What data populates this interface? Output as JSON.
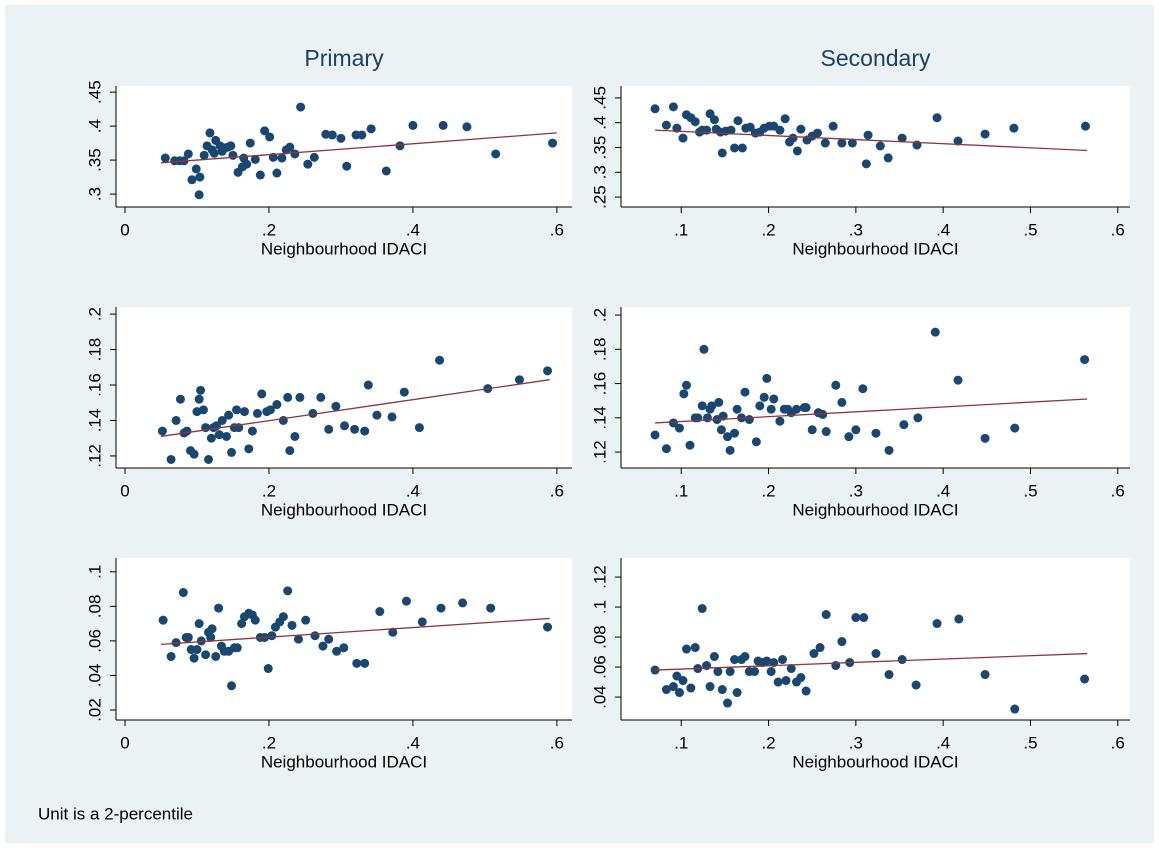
{
  "note": "Unit is a 2-percentile",
  "chart_data": [
    {
      "type": "scatter",
      "title": "Primary",
      "xlabel": "Neighbourhood IDACI",
      "color": "#1a476f",
      "xlim": [
        -0.0125,
        0.621
      ],
      "ylim": [
        0.281,
        0.459
      ],
      "xticks": [
        0,
        {
          "value": 0.2,
          "label": ".2"
        },
        {
          "value": 0.4,
          "label": ".4"
        },
        {
          "value": 0.6,
          "label": ".6"
        }
      ],
      "yticks": [
        {
          "value": 0.3,
          "label": ".3"
        },
        {
          "value": 0.35,
          "label": ".35"
        },
        {
          "value": 0.4,
          "label": ".4"
        },
        {
          "value": 0.45,
          "label": ".45"
        }
      ],
      "x": [
        0.056,
        0.069,
        0.076,
        0.082,
        0.088,
        0.093,
        0.099,
        0.103,
        0.104,
        0.11,
        0.114,
        0.118,
        0.121,
        0.124,
        0.126,
        0.132,
        0.135,
        0.139,
        0.143,
        0.147,
        0.15,
        0.157,
        0.163,
        0.165,
        0.169,
        0.174,
        0.181,
        0.188,
        0.194,
        0.201,
        0.206,
        0.211,
        0.218,
        0.224,
        0.229,
        0.236,
        0.244,
        0.254,
        0.263,
        0.279,
        0.288,
        0.3,
        0.308,
        0.321,
        0.329,
        0.342,
        0.363,
        0.382,
        0.4,
        0.442,
        0.475,
        0.515,
        0.594
      ],
      "values": [
        0.353,
        0.349,
        0.349,
        0.349,
        0.359,
        0.321,
        0.337,
        0.299,
        0.325,
        0.357,
        0.371,
        0.39,
        0.365,
        0.36,
        0.379,
        0.371,
        0.363,
        0.368,
        0.369,
        0.371,
        0.357,
        0.332,
        0.34,
        0.353,
        0.344,
        0.375,
        0.351,
        0.328,
        0.393,
        0.384,
        0.354,
        0.331,
        0.353,
        0.365,
        0.369,
        0.359,
        0.428,
        0.344,
        0.354,
        0.388,
        0.387,
        0.382,
        0.341,
        0.387,
        0.387,
        0.396,
        0.334,
        0.371,
        0.401,
        0.401,
        0.399,
        0.359,
        0.375
      ],
      "fit": {
        "color": "#90353b",
        "x": [
          0.05,
          0.6
        ],
        "values": [
          0.346,
          0.39
        ]
      }
    },
    {
      "type": "scatter",
      "title": "Secondary",
      "xlabel": "Neighbourhood IDACI",
      "color": "#1a476f",
      "xlim": [
        0.031,
        0.614
      ],
      "ylim": [
        0.23,
        0.474
      ],
      "xticks": [
        {
          "value": 0.1,
          "label": ".1"
        },
        {
          "value": 0.2,
          "label": ".2"
        },
        {
          "value": 0.3,
          "label": ".3"
        },
        {
          "value": 0.4,
          "label": ".4"
        },
        {
          "value": 0.5,
          "label": ".5"
        },
        {
          "value": 0.6,
          "label": ".6"
        }
      ],
      "yticks": [
        {
          "value": 0.25,
          "label": ".25"
        },
        {
          "value": 0.3,
          "label": ".3"
        },
        {
          "value": 0.35,
          "label": ".35"
        },
        {
          "value": 0.4,
          "label": ".4"
        },
        {
          "value": 0.45,
          "label": ".45"
        }
      ],
      "x": [
        0.07,
        0.083,
        0.091,
        0.095,
        0.102,
        0.106,
        0.111,
        0.116,
        0.121,
        0.124,
        0.129,
        0.133,
        0.138,
        0.14,
        0.145,
        0.147,
        0.151,
        0.157,
        0.161,
        0.165,
        0.17,
        0.174,
        0.179,
        0.185,
        0.19,
        0.195,
        0.201,
        0.206,
        0.213,
        0.219,
        0.224,
        0.228,
        0.233,
        0.237,
        0.244,
        0.25,
        0.256,
        0.265,
        0.274,
        0.284,
        0.296,
        0.312,
        0.314,
        0.328,
        0.337,
        0.353,
        0.37,
        0.393,
        0.417,
        0.448,
        0.481,
        0.563
      ],
      "values": [
        0.428,
        0.395,
        0.432,
        0.389,
        0.369,
        0.416,
        0.41,
        0.402,
        0.381,
        0.385,
        0.385,
        0.418,
        0.406,
        0.387,
        0.381,
        0.339,
        0.383,
        0.385,
        0.349,
        0.404,
        0.349,
        0.389,
        0.391,
        0.379,
        0.381,
        0.389,
        0.393,
        0.393,
        0.385,
        0.408,
        0.361,
        0.369,
        0.343,
        0.387,
        0.365,
        0.373,
        0.379,
        0.359,
        0.393,
        0.359,
        0.359,
        0.317,
        0.375,
        0.353,
        0.329,
        0.369,
        0.355,
        0.41,
        0.363,
        0.377,
        0.389,
        0.393
      ],
      "fit": {
        "color": "#90353b",
        "x": [
          0.07,
          0.565
        ],
        "values": [
          0.385,
          0.344
        ]
      }
    },
    {
      "type": "scatter",
      "xlabel": "Neighbourhood IDACI",
      "color": "#1a476f",
      "xlim": [
        -0.0125,
        0.621
      ],
      "ylim": [
        0.1132,
        0.204
      ],
      "xticks": [
        0,
        {
          "value": 0.2,
          "label": ".2"
        },
        {
          "value": 0.4,
          "label": ".4"
        },
        {
          "value": 0.6,
          "label": ".6"
        }
      ],
      "yticks": [
        {
          "value": 0.12,
          "label": ".12"
        },
        {
          "value": 0.14,
          "label": ".14"
        },
        {
          "value": 0.16,
          "label": ".16"
        },
        {
          "value": 0.18,
          "label": ".18"
        },
        {
          "value": 0.2,
          "label": ".2"
        }
      ],
      "x": [
        0.052,
        0.064,
        0.071,
        0.077,
        0.082,
        0.086,
        0.091,
        0.096,
        0.1,
        0.103,
        0.105,
        0.109,
        0.112,
        0.116,
        0.12,
        0.123,
        0.127,
        0.131,
        0.135,
        0.141,
        0.144,
        0.148,
        0.152,
        0.155,
        0.158,
        0.166,
        0.172,
        0.177,
        0.184,
        0.19,
        0.197,
        0.202,
        0.211,
        0.22,
        0.226,
        0.229,
        0.236,
        0.243,
        0.261,
        0.272,
        0.283,
        0.293,
        0.305,
        0.319,
        0.333,
        0.338,
        0.35,
        0.371,
        0.388,
        0.409,
        0.437,
        0.504,
        0.548,
        0.587
      ],
      "values": [
        0.134,
        0.118,
        0.14,
        0.152,
        0.133,
        0.134,
        0.123,
        0.121,
        0.145,
        0.152,
        0.157,
        0.146,
        0.136,
        0.118,
        0.13,
        0.136,
        0.137,
        0.132,
        0.14,
        0.131,
        0.143,
        0.122,
        0.136,
        0.146,
        0.136,
        0.145,
        0.124,
        0.134,
        0.144,
        0.155,
        0.145,
        0.146,
        0.149,
        0.14,
        0.153,
        0.123,
        0.131,
        0.153,
        0.144,
        0.153,
        0.135,
        0.148,
        0.137,
        0.135,
        0.134,
        0.16,
        0.143,
        0.142,
        0.156,
        0.136,
        0.174,
        0.158,
        0.163,
        0.168
      ],
      "fit": {
        "color": "#90353b",
        "x": [
          0.05,
          0.59
        ],
        "values": [
          0.131,
          0.163
        ]
      }
    },
    {
      "type": "scatter",
      "xlabel": "Neighbourhood IDACI",
      "color": "#1a476f",
      "xlim": [
        0.031,
        0.614
      ],
      "ylim": [
        0.1107,
        0.2047
      ],
      "xticks": [
        {
          "value": 0.1,
          "label": ".1"
        },
        {
          "value": 0.2,
          "label": ".2"
        },
        {
          "value": 0.3,
          "label": ".3"
        },
        {
          "value": 0.4,
          "label": ".4"
        },
        {
          "value": 0.5,
          "label": ".5"
        },
        {
          "value": 0.6,
          "label": ".6"
        }
      ],
      "yticks": [
        {
          "value": 0.12,
          "label": ".12"
        },
        {
          "value": 0.14,
          "label": ".14"
        },
        {
          "value": 0.16,
          "label": ".16"
        },
        {
          "value": 0.18,
          "label": ".18"
        },
        {
          "value": 0.2,
          "label": ".2"
        }
      ],
      "x": [
        0.07,
        0.083,
        0.091,
        0.098,
        0.103,
        0.106,
        0.11,
        0.116,
        0.119,
        0.124,
        0.126,
        0.13,
        0.133,
        0.135,
        0.141,
        0.143,
        0.146,
        0.148,
        0.153,
        0.156,
        0.161,
        0.164,
        0.169,
        0.173,
        0.178,
        0.186,
        0.19,
        0.195,
        0.198,
        0.203,
        0.206,
        0.213,
        0.218,
        0.222,
        0.226,
        0.232,
        0.241,
        0.243,
        0.25,
        0.257,
        0.262,
        0.266,
        0.277,
        0.284,
        0.292,
        0.3,
        0.308,
        0.323,
        0.338,
        0.355,
        0.371,
        0.391,
        0.417,
        0.448,
        0.482,
        0.562
      ],
      "values": [
        0.13,
        0.122,
        0.137,
        0.134,
        0.154,
        0.159,
        0.124,
        0.14,
        0.14,
        0.147,
        0.18,
        0.14,
        0.145,
        0.147,
        0.139,
        0.149,
        0.133,
        0.141,
        0.129,
        0.121,
        0.131,
        0.145,
        0.14,
        0.155,
        0.139,
        0.126,
        0.147,
        0.152,
        0.163,
        0.145,
        0.151,
        0.138,
        0.145,
        0.145,
        0.143,
        0.145,
        0.146,
        0.146,
        0.133,
        0.143,
        0.142,
        0.132,
        0.159,
        0.149,
        0.129,
        0.133,
        0.157,
        0.131,
        0.121,
        0.136,
        0.14,
        0.19,
        0.162,
        0.128,
        0.134,
        0.174
      ],
      "fit": {
        "color": "#90353b",
        "x": [
          0.07,
          0.565
        ],
        "values": [
          0.137,
          0.151
        ]
      }
    },
    {
      "type": "scatter",
      "xlabel": "Neighbourhood IDACI",
      "color": "#1a476f",
      "xlim": [
        -0.0125,
        0.621
      ],
      "ylim": [
        0.0142,
        0.108
      ],
      "xticks": [
        0,
        {
          "value": 0.2,
          "label": ".2"
        },
        {
          "value": 0.4,
          "label": ".4"
        },
        {
          "value": 0.6,
          "label": ".6"
        }
      ],
      "yticks": [
        {
          "value": 0.02,
          "label": ".02"
        },
        {
          "value": 0.04,
          "label": ".04"
        },
        {
          "value": 0.06,
          "label": ".06"
        },
        {
          "value": 0.08,
          "label": ".08"
        },
        {
          "value": 0.1,
          "label": ".1"
        }
      ],
      "x": [
        0.053,
        0.064,
        0.071,
        0.081,
        0.085,
        0.088,
        0.092,
        0.096,
        0.1,
        0.103,
        0.106,
        0.112,
        0.116,
        0.119,
        0.121,
        0.126,
        0.13,
        0.134,
        0.138,
        0.144,
        0.148,
        0.152,
        0.156,
        0.162,
        0.166,
        0.172,
        0.177,
        0.181,
        0.188,
        0.194,
        0.199,
        0.204,
        0.209,
        0.215,
        0.22,
        0.226,
        0.232,
        0.241,
        0.251,
        0.264,
        0.275,
        0.283,
        0.294,
        0.304,
        0.322,
        0.333,
        0.354,
        0.372,
        0.391,
        0.413,
        0.439,
        0.469,
        0.508,
        0.587
      ],
      "values": [
        0.072,
        0.051,
        0.059,
        0.088,
        0.062,
        0.062,
        0.055,
        0.05,
        0.055,
        0.07,
        0.06,
        0.052,
        0.065,
        0.062,
        0.067,
        0.051,
        0.079,
        0.057,
        0.054,
        0.054,
        0.034,
        0.056,
        0.056,
        0.07,
        0.074,
        0.076,
        0.075,
        0.072,
        0.062,
        0.062,
        0.044,
        0.063,
        0.068,
        0.071,
        0.074,
        0.089,
        0.069,
        0.061,
        0.072,
        0.063,
        0.057,
        0.061,
        0.054,
        0.056,
        0.047,
        0.047,
        0.077,
        0.065,
        0.083,
        0.071,
        0.079,
        0.082,
        0.079,
        0.068
      ],
      "fit": {
        "color": "#90353b",
        "x": [
          0.05,
          0.59
        ],
        "values": [
          0.058,
          0.073
        ]
      }
    },
    {
      "type": "scatter",
      "xlabel": "Neighbourhood IDACI",
      "color": "#1a476f",
      "xlim": [
        0.031,
        0.614
      ],
      "ylim": [
        0.0247,
        0.1327
      ],
      "xticks": [
        {
          "value": 0.1,
          "label": ".1"
        },
        {
          "value": 0.2,
          "label": ".2"
        },
        {
          "value": 0.3,
          "label": ".3"
        },
        {
          "value": 0.4,
          "label": ".4"
        },
        {
          "value": 0.5,
          "label": ".5"
        },
        {
          "value": 0.6,
          "label": ".6"
        }
      ],
      "yticks": [
        {
          "value": 0.04,
          "label": ".04"
        },
        {
          "value": 0.06,
          "label": ".06"
        },
        {
          "value": 0.08,
          "label": ".08"
        },
        {
          "value": 0.1,
          "label": ".1"
        },
        {
          "value": 0.12,
          "label": ".12"
        }
      ],
      "x": [
        0.07,
        0.083,
        0.091,
        0.095,
        0.098,
        0.102,
        0.106,
        0.111,
        0.116,
        0.119,
        0.124,
        0.129,
        0.133,
        0.138,
        0.142,
        0.147,
        0.153,
        0.156,
        0.161,
        0.164,
        0.169,
        0.173,
        0.178,
        0.184,
        0.188,
        0.193,
        0.198,
        0.203,
        0.206,
        0.211,
        0.216,
        0.22,
        0.226,
        0.232,
        0.237,
        0.243,
        0.252,
        0.259,
        0.266,
        0.277,
        0.284,
        0.293,
        0.3,
        0.309,
        0.323,
        0.338,
        0.353,
        0.369,
        0.393,
        0.418,
        0.448,
        0.482,
        0.562
      ],
      "values": [
        0.058,
        0.045,
        0.047,
        0.054,
        0.043,
        0.051,
        0.072,
        0.046,
        0.073,
        0.059,
        0.099,
        0.061,
        0.047,
        0.067,
        0.057,
        0.045,
        0.036,
        0.057,
        0.065,
        0.043,
        0.065,
        0.067,
        0.057,
        0.057,
        0.064,
        0.063,
        0.064,
        0.057,
        0.063,
        0.05,
        0.065,
        0.051,
        0.059,
        0.05,
        0.053,
        0.044,
        0.069,
        0.073,
        0.095,
        0.061,
        0.077,
        0.063,
        0.093,
        0.093,
        0.069,
        0.055,
        0.065,
        0.048,
        0.089,
        0.092,
        0.055,
        0.032,
        0.052
      ],
      "fit": {
        "color": "#90353b",
        "x": [
          0.07,
          0.565
        ],
        "values": [
          0.058,
          0.069
        ]
      }
    }
  ]
}
